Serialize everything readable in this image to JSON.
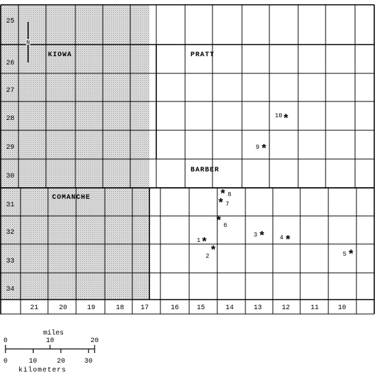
{
  "map": {
    "county_labels": {
      "kiowa": "KIOWA",
      "pratt": "PRATT",
      "barber": "BARBER",
      "comanche": "COMANCHE"
    },
    "north_arrow": "N",
    "township_labels": [
      "25",
      "26",
      "27",
      "28",
      "29",
      "30",
      "31",
      "32",
      "33",
      "34"
    ],
    "range_labels": [
      "21",
      "20",
      "19",
      "18",
      "17",
      "16",
      "15",
      "14",
      "13",
      "12",
      "11",
      "10"
    ],
    "sites": [
      {
        "id": "site-1",
        "label": "1",
        "marker": "*"
      },
      {
        "id": "site-2",
        "label": "2",
        "marker": "*"
      },
      {
        "id": "site-3",
        "label": "3",
        "marker": "*"
      },
      {
        "id": "site-4",
        "label": "4",
        "marker": "*"
      },
      {
        "id": "site-5",
        "label": "5",
        "marker": "*"
      },
      {
        "id": "site-6",
        "label": "6",
        "marker": "*"
      },
      {
        "id": "site-7",
        "label": "7",
        "marker": "*"
      },
      {
        "id": "site-8",
        "label": "8",
        "marker": "*"
      },
      {
        "id": "site-9",
        "label": "9",
        "marker": "*"
      },
      {
        "id": "site-10",
        "label": "10",
        "marker": "*"
      }
    ]
  },
  "scale_bar": {
    "miles_title": "miles",
    "miles_ticks": [
      "0",
      "10",
      "20"
    ],
    "km_title": "kilometers",
    "km_ticks": [
      "0",
      "10",
      "20",
      "30"
    ]
  },
  "colors": {
    "shading": "#d2d2d2",
    "lines": "#000000",
    "background": "#ffffff"
  }
}
